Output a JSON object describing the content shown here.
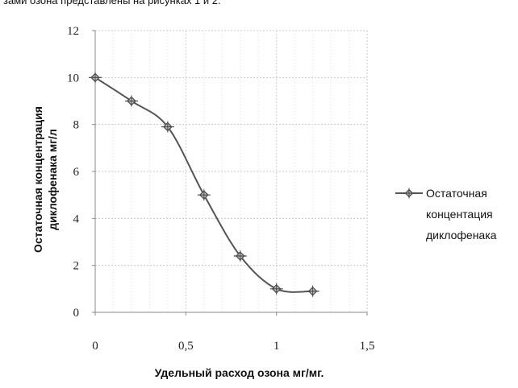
{
  "page_text": "зами озона представлены на рисунках 1 и 2.",
  "chart_data": {
    "type": "line",
    "title": "",
    "xlabel": "Удельный расход озона мг/мг.",
    "ylabel_lines": [
      "Остаточная концентрация",
      "диклофенака мг/л"
    ],
    "xlim": [
      0,
      1.5
    ],
    "ylim": [
      0,
      12
    ],
    "x_ticks": [
      "0",
      "0,5",
      "1",
      "1,5"
    ],
    "y_ticks": [
      "0",
      "2",
      "4",
      "6",
      "8",
      "10",
      "12"
    ],
    "grid": true,
    "legend_position": "right",
    "series": [
      {
        "name_lines": [
          "Остаточная",
          "концентация",
          "диклофенака"
        ],
        "color": "#555555",
        "marker": "diamond",
        "x": [
          0,
          0.2,
          0.4,
          0.6,
          0.8,
          1.0,
          1.2
        ],
        "y": [
          10.0,
          9.0,
          7.9,
          5.0,
          2.4,
          1.0,
          0.9
        ]
      }
    ]
  }
}
